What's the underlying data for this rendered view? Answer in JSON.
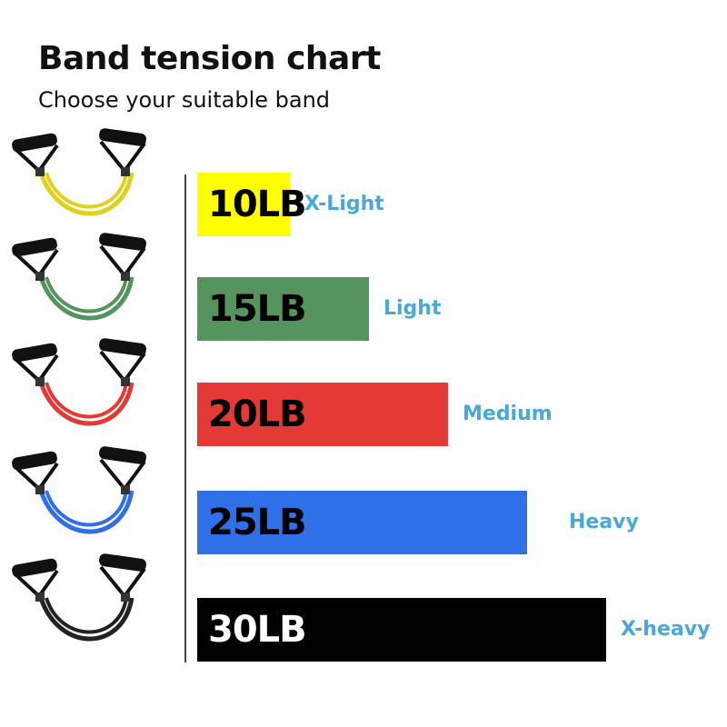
{
  "chart_data": {
    "type": "bar",
    "orientation": "horizontal",
    "title": "Band tension chart",
    "subtitle": "Choose your suitable band",
    "categories": [
      "10LB",
      "15LB",
      "20LB",
      "25LB",
      "30LB"
    ],
    "values": [
      10,
      15,
      20,
      25,
      30
    ],
    "levels": [
      "X-Light",
      "Light",
      "Medium",
      "Heavy",
      "X-heavy"
    ],
    "colors": [
      "#ffff00",
      "#55935f",
      "#e53935",
      "#2f6fe8",
      "#000000"
    ],
    "label_colors": [
      "#000000",
      "#000000",
      "#000000",
      "#000000",
      "#ffffff"
    ],
    "level_color": "#4aa8d8",
    "icon": "resistance-band-icon"
  }
}
